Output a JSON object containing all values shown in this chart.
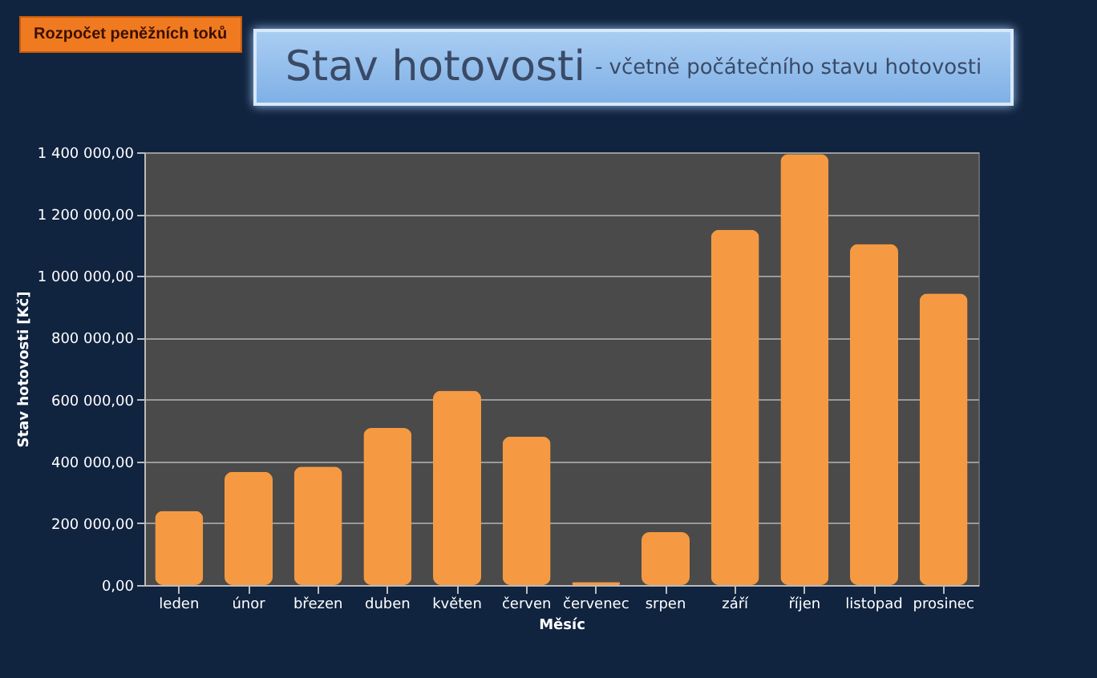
{
  "chart_data": {
    "type": "bar",
    "title": "Stav hotovosti",
    "subtitle": "- včetně počátečního stavu hotovosti",
    "xlabel": "Měsíc",
    "ylabel": "Stav hotovosti [Kč]",
    "annotations": [
      "Rozpočet peněžních toků"
    ],
    "categories": [
      "leden",
      "únor",
      "březen",
      "duben",
      "květen",
      "červen",
      "červenec",
      "srpen",
      "září",
      "říjen",
      "listopad",
      "prosinec"
    ],
    "values": [
      240000,
      366000,
      383000,
      508000,
      629000,
      480000,
      10000,
      171000,
      1149000,
      1394000,
      1103000,
      943000
    ],
    "color": "#f59a42",
    "ylim": [
      0,
      1400000
    ],
    "yticks": [
      {
        "value": 0,
        "label": "0,00"
      },
      {
        "value": 200000,
        "label": "200 000,00"
      },
      {
        "value": 400000,
        "label": "400 000,00"
      },
      {
        "value": 600000,
        "label": "600 000,00"
      },
      {
        "value": 800000,
        "label": "800 000,00"
      },
      {
        "value": 1000000,
        "label": "1 000 000,00"
      },
      {
        "value": 1200000,
        "label": "1 200 000,00"
      },
      {
        "value": 1400000,
        "label": "1 400 000,00"
      }
    ],
    "grid": true
  }
}
